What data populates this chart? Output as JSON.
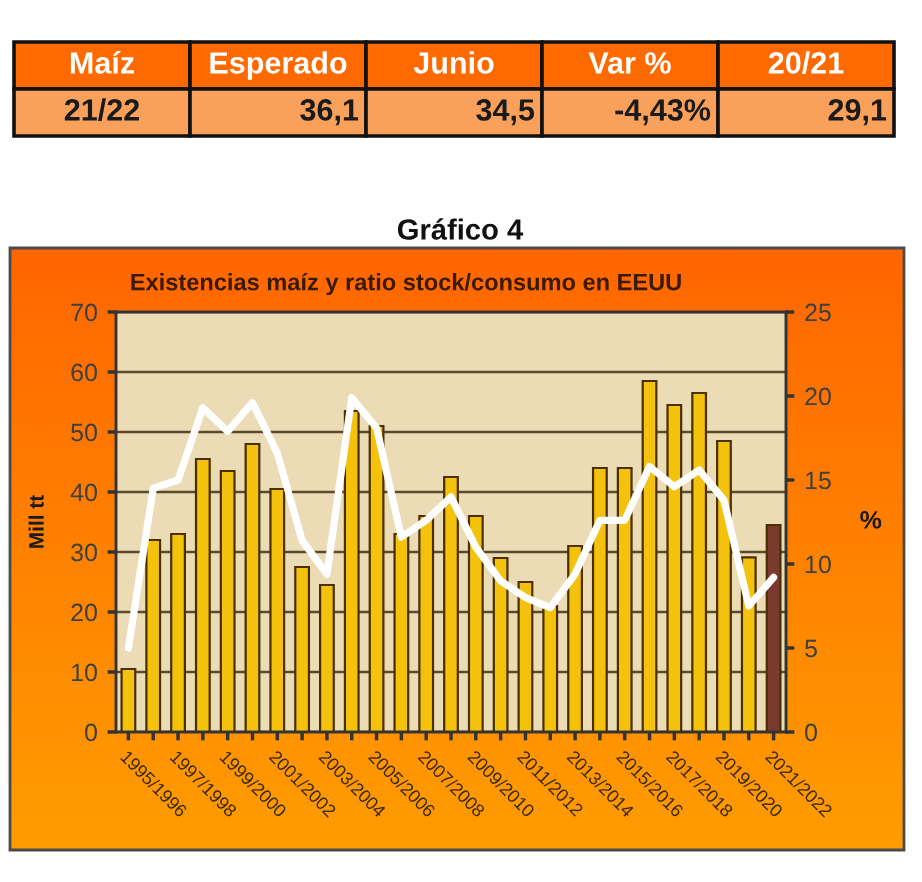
{
  "chart_data": [
    {
      "type": "other",
      "categories": [
        "Maíz",
        "Esperado",
        "Junio",
        "Var %",
        "20/21"
      ],
      "annotations": [
        "21/22",
        "36,1",
        "34,5",
        "-4,43%",
        "29,1"
      ]
    },
    {
      "type": "bar",
      "title": "Gráfico 4",
      "subtitle": "Existencias maíz y ratio stock/consumo en EEUU",
      "ylabel": "Mill tt",
      "y2label": "%",
      "categories": [
        "1995/1996",
        null,
        "1997/1998",
        null,
        "1999/2000",
        null,
        "2001/2002",
        null,
        "2003/2004",
        null,
        "2005/2006",
        null,
        "2007/2008",
        null,
        "2009/2010",
        null,
        "2011/2012",
        null,
        "2013/2014",
        null,
        "2015/2016",
        null,
        "2017/2018",
        null,
        "2019/2020",
        null,
        "2021/2022"
      ],
      "series": [
        {
          "type": "bar",
          "colors": [
            "#f4c20d",
            "#f4c20d",
            "#f4c20d",
            "#f4c20d",
            "#f4c20d",
            "#f4c20d",
            "#f4c20d",
            "#f4c20d",
            "#f4c20d",
            "#f4c20d",
            "#f4c20d",
            "#f4c20d",
            "#f4c20d",
            "#f4c20d",
            "#f4c20d",
            "#f4c20d",
            "#f4c20d",
            "#f4c20d",
            "#f4c20d",
            "#f4c20d",
            "#f4c20d",
            "#f4c20d",
            "#f4c20d",
            "#f4c20d",
            "#f4c20d",
            "#f4c20d",
            "#7a3b2e"
          ],
          "values": [
            10.5,
            32,
            33,
            45.5,
            43.5,
            48,
            40.5,
            27.5,
            24.5,
            53.5,
            51,
            33,
            36,
            42.5,
            36,
            29,
            25,
            21,
            31,
            44,
            44,
            58.5,
            54.5,
            56.5,
            48.5,
            29.1,
            34.5
          ]
        },
        {
          "type": "line",
          "axis": "y2",
          "color": "#ffffff",
          "values": [
            5,
            14.5,
            15,
            19.3,
            17.9,
            19.6,
            16.6,
            11.4,
            9.4,
            19.9,
            18.1,
            11.6,
            12.6,
            14,
            11,
            9,
            8,
            7.4,
            9.4,
            12.6,
            12.6,
            15.8,
            14.6,
            15.6,
            13.8,
            7.5,
            9.2
          ]
        }
      ],
      "ylim": [
        0,
        70
      ],
      "yticks": [
        0,
        10,
        20,
        30,
        40,
        50,
        60,
        70
      ],
      "y2lim": [
        0,
        25
      ],
      "y2ticks": [
        0,
        5,
        10,
        15,
        20,
        25
      ],
      "grid": "y"
    }
  ]
}
